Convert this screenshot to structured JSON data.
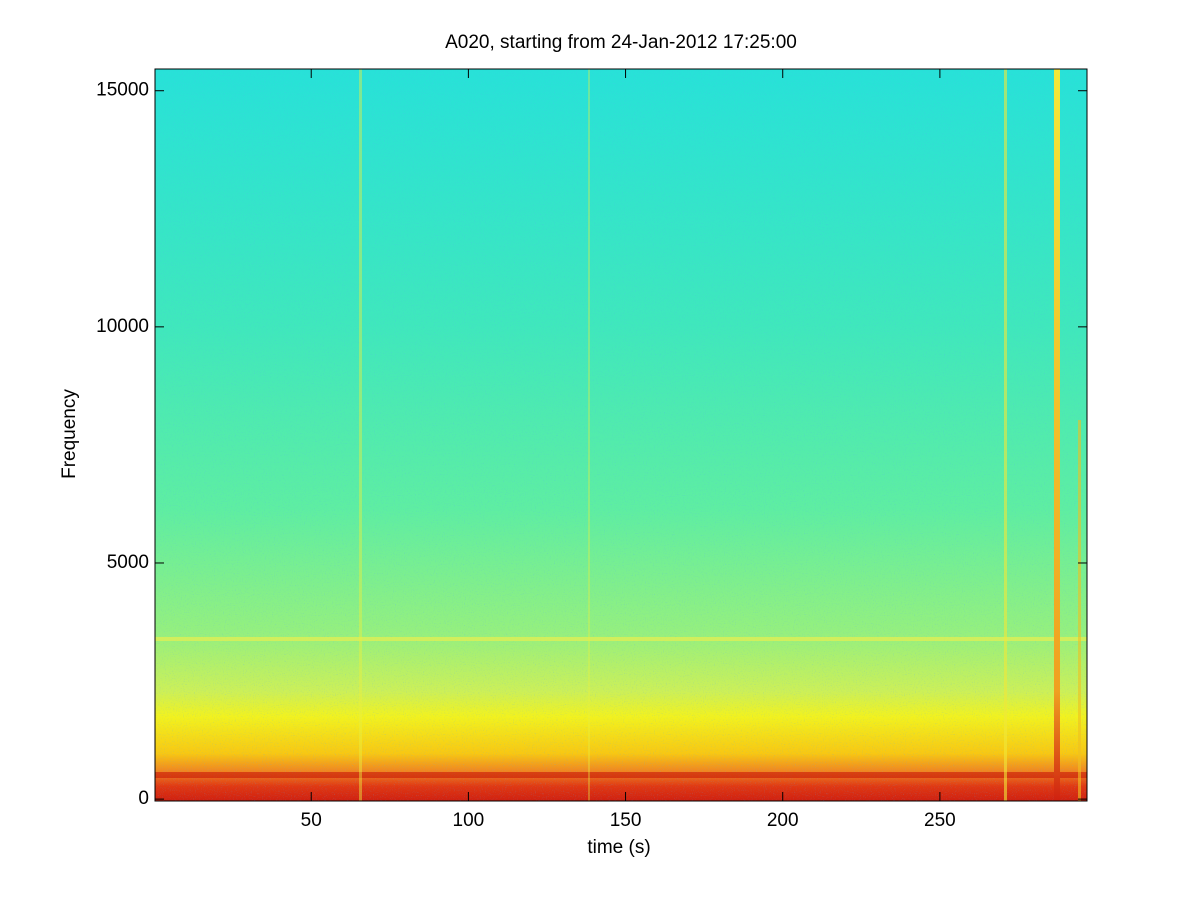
{
  "chart_data": {
    "type": "spectrogram",
    "title": "A020, starting from 24-Jan-2012 17:25:00",
    "xlabel": "time (s)",
    "ylabel": "Frequency",
    "xlim": [
      0.3,
      296.8
    ],
    "ylim": [
      -40,
      15460
    ],
    "xticks": [
      50,
      100,
      150,
      200,
      250
    ],
    "yticks": [
      0,
      5000,
      10000,
      15000
    ]
  }
}
